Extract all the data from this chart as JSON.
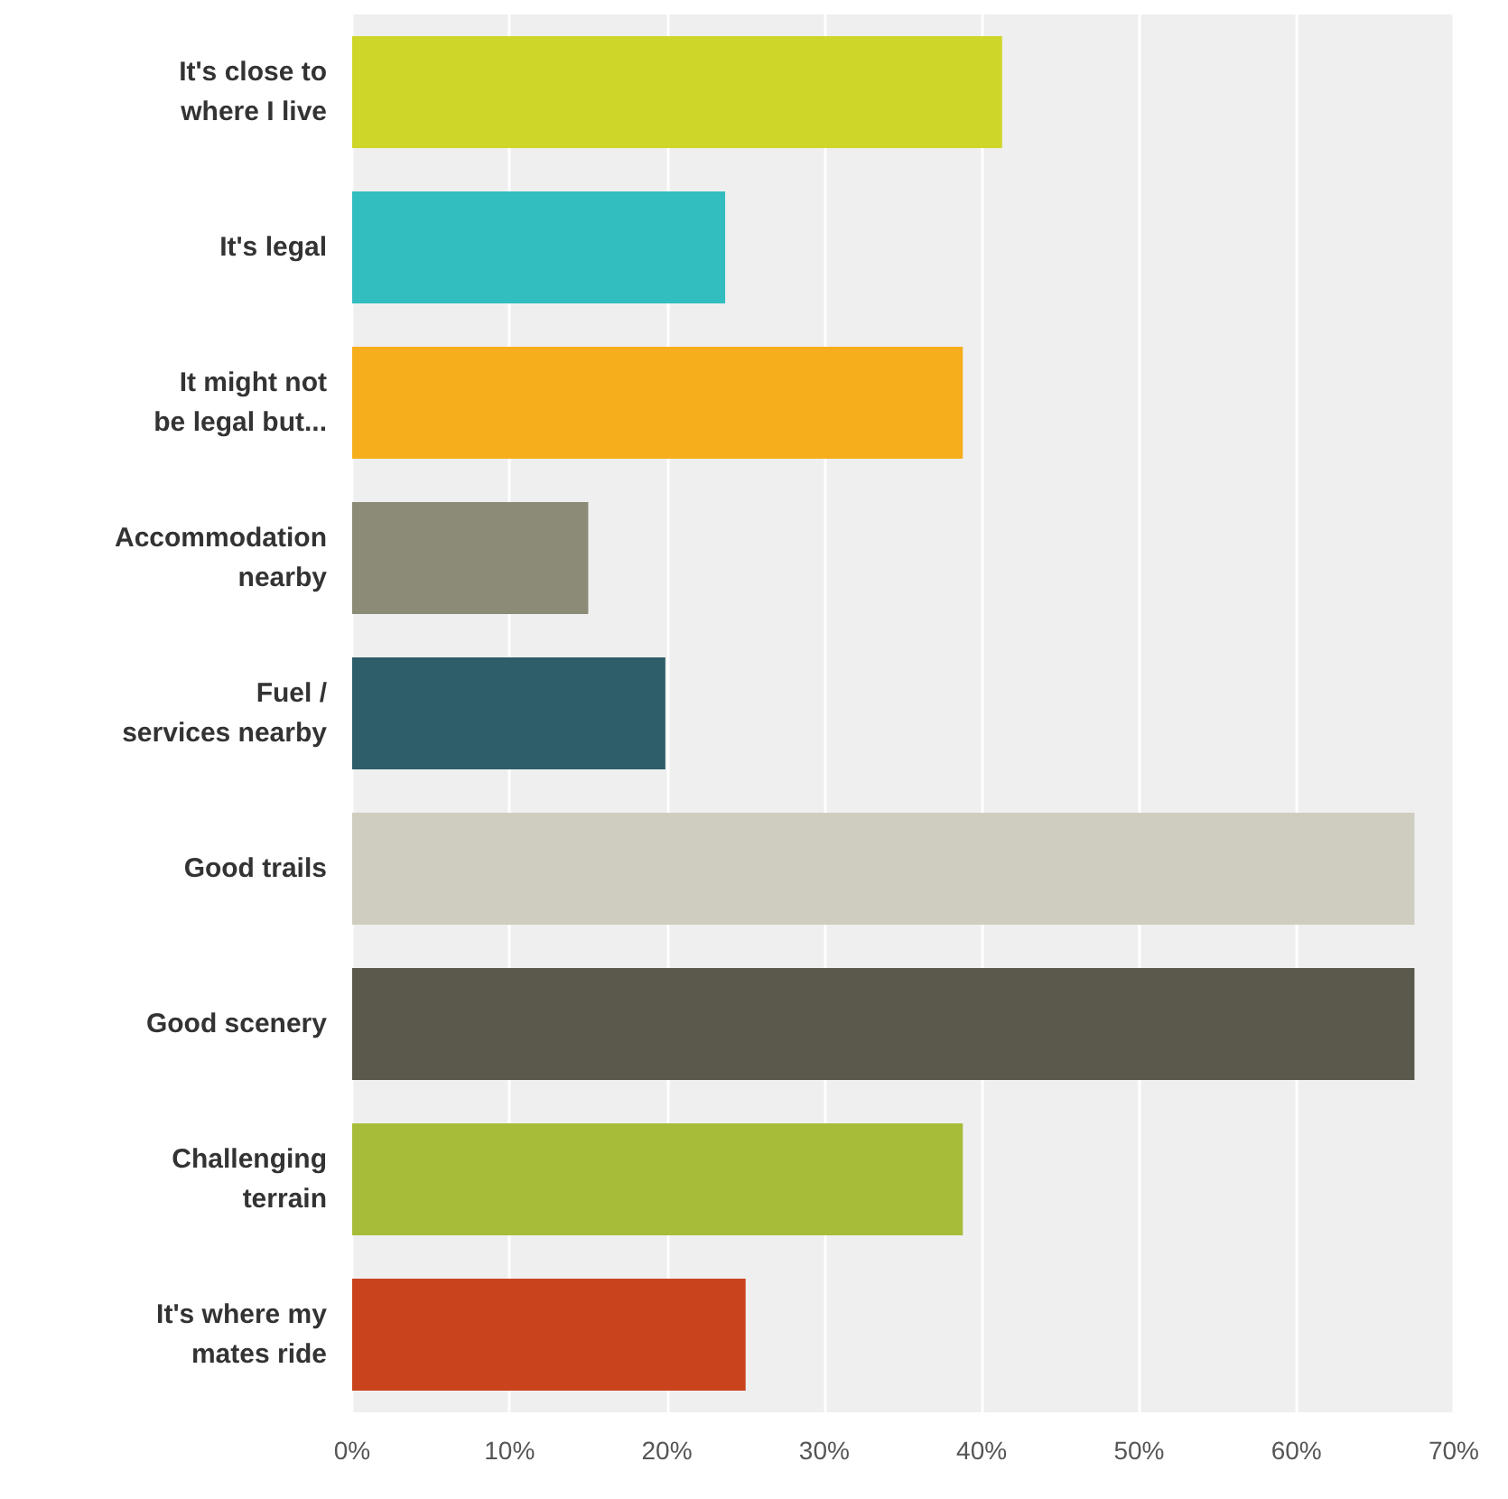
{
  "chart_data": {
    "type": "bar",
    "orientation": "horizontal",
    "categories": [
      "It's close to\nwhere I live",
      "It's legal",
      "It might not\nbe legal but...",
      "Accommodation\nnearby",
      "Fuel /\nservices nearby",
      "Good trails",
      "Good scenery",
      "Challenging\nterrain",
      "It's where my\nmates ride"
    ],
    "values": [
      41.3,
      23.7,
      38.8,
      15.0,
      19.9,
      67.5,
      67.5,
      38.8,
      25.0
    ],
    "colors": [
      "#cfd62a",
      "#32bdbf",
      "#f6ae1d",
      "#8b8b78",
      "#2e5e6a",
      "#cfcdbf",
      "#5b594c",
      "#a7bd3a",
      "#c9441c"
    ],
    "xlim": [
      0,
      70
    ],
    "xticks": [
      {
        "value": 0,
        "label": "0%"
      },
      {
        "value": 10,
        "label": "10%"
      },
      {
        "value": 20,
        "label": "20%"
      },
      {
        "value": 30,
        "label": "30%"
      },
      {
        "value": 40,
        "label": "40%"
      },
      {
        "value": 50,
        "label": "50%"
      },
      {
        "value": 60,
        "label": "60%"
      },
      {
        "value": 70,
        "label": "70%"
      }
    ],
    "grid": "x"
  }
}
